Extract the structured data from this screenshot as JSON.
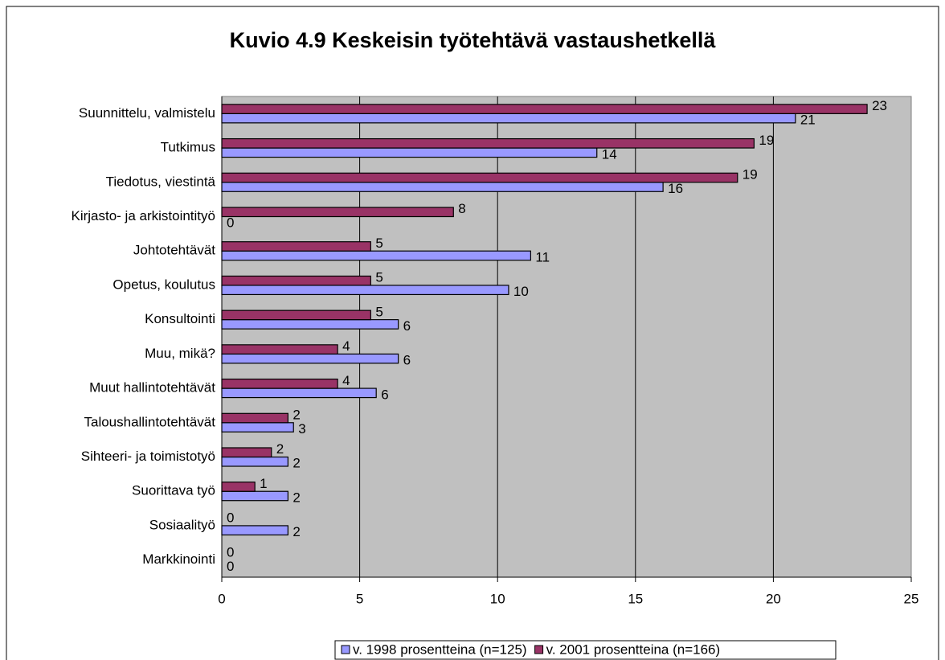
{
  "chart_data": {
    "type": "bar",
    "orientation": "horizontal",
    "title": "Kuvio 4.9 Keskeisin työtehtävä vastaushetkellä",
    "categories": [
      "Suunnittelu, valmistelu",
      "Tutkimus",
      "Tiedotus, viestintä",
      "Kirjasto- ja arkistointityö",
      "Johtotehtävät",
      "Opetus, koulutus",
      "Konsultointi",
      "Muu, mikä?",
      "Muut hallintotehtävät",
      "Taloushallintotehtävät",
      "Sihteeri- ja toimistotyö",
      "Suorittava työ",
      "Sosiaalityö",
      "Markkinointi"
    ],
    "series": [
      {
        "name": "v. 1998 prosentteina (n=125)",
        "color": "#9999ff",
        "values": [
          20.8,
          13.6,
          16.0,
          0,
          11.2,
          10.4,
          6.4,
          6.4,
          5.6,
          2.6,
          2.4,
          2.4,
          2.4,
          0
        ],
        "value_labels": [
          "21",
          "14",
          "16",
          "0",
          "11",
          "10",
          "6",
          "6",
          "6",
          "3",
          "2",
          "2",
          "2",
          "0"
        ]
      },
      {
        "name": "v. 2001 prosentteina (n=166)",
        "color": "#993366",
        "values": [
          23.4,
          19.3,
          18.7,
          8.4,
          5.4,
          5.4,
          5.4,
          4.2,
          4.2,
          2.4,
          1.8,
          1.2,
          0,
          0
        ],
        "value_labels": [
          "23",
          "19",
          "19",
          "8",
          "5",
          "5",
          "5",
          "4",
          "4",
          "2",
          "2",
          "1",
          "0",
          "0"
        ]
      }
    ],
    "xlim": [
      0,
      25
    ],
    "xticks": [
      0,
      5,
      10,
      15,
      20,
      25
    ],
    "grid": true,
    "legend": "bottom"
  }
}
